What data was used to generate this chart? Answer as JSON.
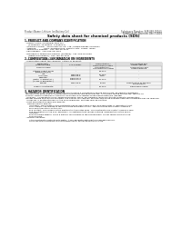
{
  "background_color": "#ffffff",
  "header_left": "Product Name: Lithium Ion Battery Cell",
  "header_right_line1": "Substance Number: 94R-048-00013",
  "header_right_line2": "Established / Revision: Dec.7 2010",
  "title": "Safety data sheet for chemical products (SDS)",
  "section1_title": "1. PRODUCT AND COMPANY IDENTIFICATION",
  "section1_lines": [
    "· Product name: Lithium Ion Battery Cell",
    "· Product code: Cylindrical-type cell",
    "    (14186500, 14198500, 14198504)",
    "· Company name:   Sanyo Electric Co., Ltd., Mobile Energy Company",
    "· Address:           2001, Kamimakusa, Sumoto-City, Hyogo, Japan",
    "· Telephone number:  +81-799-26-4111",
    "· Fax number:  +81-799-26-4121",
    "· Emergency telephone number (daytime): +81-799-26-3062",
    "    (Night and holiday): +81-799-26-4101"
  ],
  "section2_title": "2. COMPOSITION / INFORMATION ON INGREDIENTS",
  "section2_lines": [
    "· Substance or preparation: Preparation",
    "· Information about the chemical nature of product:"
  ],
  "table_rows": [
    [
      "Several name",
      "-",
      "Concentration /\nConcentration range",
      "Classification and\nhazard labeling"
    ],
    [
      "Lithium cobalt oxide\n(LiMn/Co/Ni/O4)",
      "-",
      "30-60%",
      "-"
    ],
    [
      "Iron\nAluminum",
      "7439-89-6\n7429-90-5",
      "15-25%\n2-8%",
      "-"
    ],
    [
      "Graphite\n(Metal in graphite+)\n(Al-Mo in graphite+)",
      "17393-42-3\n17393-44-2",
      "10-20%",
      "-"
    ],
    [
      "Copper",
      "7440-50-8",
      "5-15%",
      "Sensitization of the skin\ngroup R43.2"
    ],
    [
      "Organic electrolyte",
      "-",
      "10-20%",
      "Flammable liquid"
    ]
  ],
  "table_header": [
    "Component/\nchemical name",
    "CAS number",
    "Concentration /\nConcentration range",
    "Classification and\nhazard labeling"
  ],
  "section3_title": "3. HAZARDS IDENTIFICATION",
  "section3_para": [
    "For the battery cell, chemical materials are stored in a hermetically-sealed metal case, designed to withstand",
    "temperatures generated by electrochemical reactions during normal use. As a result, during normal use, there is no",
    "physical danger of ignition or explosion and there is no danger of hazardous materials leakage.",
    "  However, if exposed to a fire, added mechanical shock, decomposed, when electrolyte chemistry malfunction,",
    "the gas release vent will be operated. The battery cell case will be breached at fire-extreme hazardous materials may be released.",
    "  Moreover, if heated strongly by the surrounding fire, soot gas may be emitted."
  ],
  "bullet_human": "· Most important hazard and effects:",
  "bullet_human_sub": "Human health effects:",
  "sub_lines": [
    "    Inhalation: The release of the electrolyte has an anesthesia action and stimulates in respiratory tract.",
    "    Skin contact: The release of the electrolyte stimulates a skin. The electrolyte skin contact causes a",
    "    sore and stimulation on the skin.",
    "    Eye contact: The release of the electrolyte stimulates eyes. The electrolyte eye contact causes a sore",
    "    and stimulation on the eye. Especially, a substance that causes a strong inflammation of the eye is",
    "    included.",
    "    Environmental effects: Since a battery cell remains in the environment, do not throw out it into the",
    "    environment."
  ],
  "specific": "· Specific hazards:",
  "specific_lines": [
    "    If the electrolyte contacts with water, it will generate detrimental hydrogen fluoride.",
    "    Since the seal electrolyte is inflammable liquid, do not bring close to fire."
  ]
}
